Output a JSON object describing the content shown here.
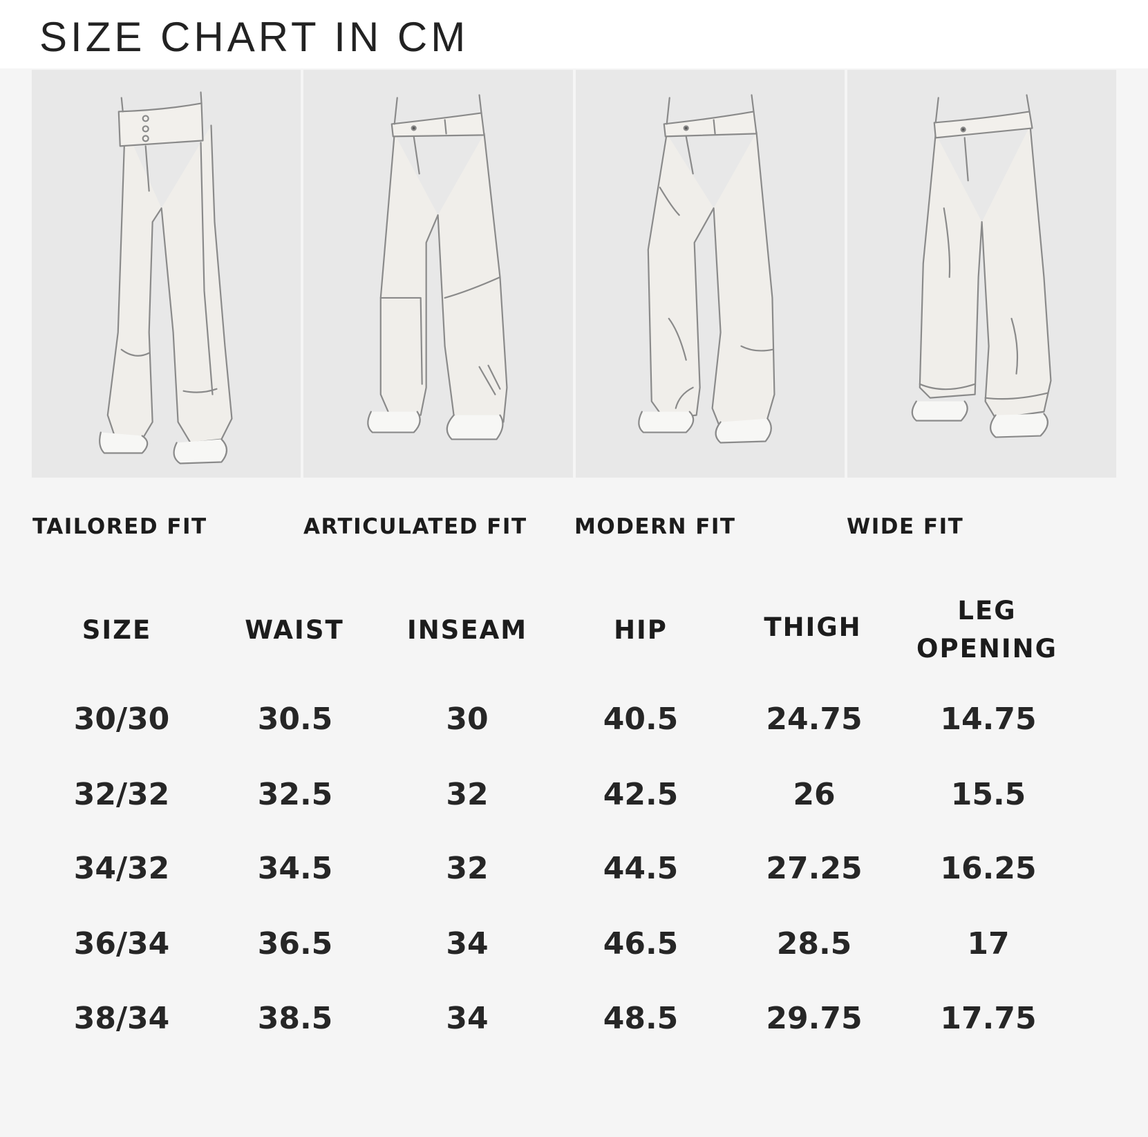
{
  "header": {
    "title": "SIZE CHART IN CM"
  },
  "fits": [
    {
      "label": "TAILORED FIT",
      "icon": "tailored-pants-illustration"
    },
    {
      "label": "ARTICULATED FIT",
      "icon": "articulated-pants-illustration"
    },
    {
      "label": "MODERN FIT",
      "icon": "modern-pants-illustration"
    },
    {
      "label": "WIDE FIT",
      "icon": "wide-pants-illustration"
    }
  ],
  "table": {
    "headers": {
      "size": "SIZE",
      "waist": "WAIST",
      "inseam": "INSEAM",
      "hip": "HIP",
      "thigh": "THIGH",
      "leg_opening_1": "LEG",
      "leg_opening_2": "OPENING"
    },
    "rows": [
      {
        "size": "30/30",
        "waist": "30.5",
        "inseam": "30",
        "hip": "40.5",
        "thigh": "24.75",
        "leg_opening": "14.75"
      },
      {
        "size": "32/32",
        "waist": "32.5",
        "inseam": "32",
        "hip": "42.5",
        "thigh": "26",
        "leg_opening": "15.5"
      },
      {
        "size": "34/32",
        "waist": "34.5",
        "inseam": "32",
        "hip": "44.5",
        "thigh": "27.25",
        "leg_opening": "16.25"
      },
      {
        "size": "36/34",
        "waist": "36.5",
        "inseam": "34",
        "hip": "46.5",
        "thigh": "28.5",
        "leg_opening": "17"
      },
      {
        "size": "38/34",
        "waist": "38.5",
        "inseam": "34",
        "hip": "48.5",
        "thigh": "29.75",
        "leg_opening": "17.75"
      }
    ]
  }
}
